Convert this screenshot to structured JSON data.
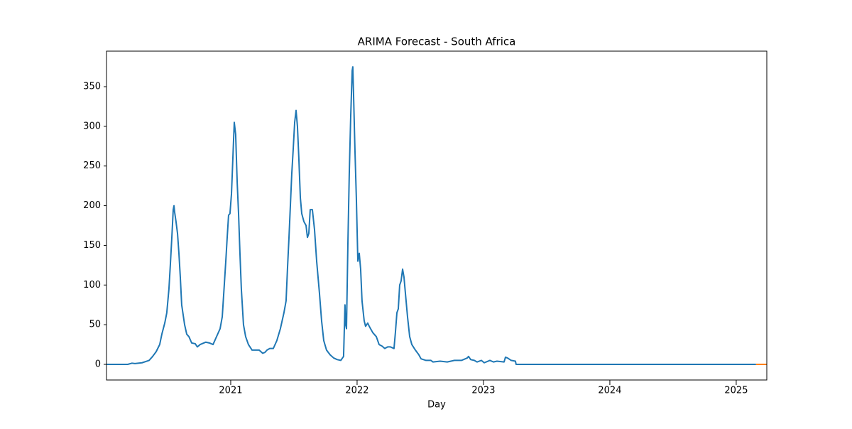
{
  "chart_data": {
    "type": "line",
    "title": "ARIMA Forecast - South Africa",
    "x_label": "Day",
    "xlim": [
      2020.017,
      2025.242
    ],
    "xticks": [
      2021,
      2022,
      2023,
      2024,
      2025
    ],
    "ylim": [
      -19.7,
      394.8
    ],
    "yticks": [
      0,
      50,
      100,
      150,
      200,
      250,
      300,
      350
    ],
    "grid": false,
    "series": [
      {
        "color": "#1f77b4",
        "x": [
          2020.017,
          2020.185,
          2020.219,
          2020.242,
          2020.298,
          2020.354,
          2020.382,
          2020.41,
          2020.438,
          2020.455,
          2020.478,
          2020.494,
          2020.511,
          2020.522,
          2020.534,
          2020.545,
          2020.551,
          2020.556,
          2020.567,
          2020.579,
          2020.59,
          2020.601,
          2020.612,
          2020.624,
          2020.635,
          2020.652,
          2020.669,
          2020.691,
          2020.719,
          2020.736,
          2020.758,
          2020.803,
          2020.831,
          2020.86,
          2020.888,
          2020.916,
          2020.933,
          2020.949,
          2020.961,
          2020.972,
          2020.983,
          2020.994,
          2021.006,
          2021.017,
          2021.028,
          2021.039,
          2021.051,
          2021.062,
          2021.073,
          2021.084,
          2021.101,
          2021.118,
          2021.14,
          2021.169,
          2021.225,
          2021.253,
          2021.27,
          2021.287,
          2021.309,
          2021.337,
          2021.365,
          2021.393,
          2021.421,
          2021.438,
          2021.449,
          2021.461,
          2021.472,
          2021.483,
          2021.494,
          2021.506,
          2021.517,
          2021.528,
          2021.539,
          2021.551,
          2021.562,
          2021.579,
          2021.596,
          2021.607,
          2021.618,
          2021.629,
          2021.646,
          2021.663,
          2021.68,
          2021.702,
          2021.719,
          2021.736,
          2021.758,
          2021.787,
          2021.815,
          2021.843,
          2021.871,
          2021.893,
          2021.899,
          2021.904,
          2021.91,
          2021.916,
          2021.927,
          2021.938,
          2021.949,
          2021.961,
          2021.966,
          2021.972,
          2021.983,
          2021.994,
          2022.006,
          2022.017,
          2022.028,
          2022.039,
          2022.056,
          2022.067,
          2022.084,
          2022.096,
          2022.124,
          2022.152,
          2022.174,
          2022.197,
          2022.219,
          2022.242,
          2022.264,
          2022.292,
          2022.303,
          2022.315,
          2022.326,
          2022.337,
          2022.348,
          2022.36,
          2022.371,
          2022.382,
          2022.399,
          2022.416,
          2022.433,
          2022.461,
          2022.489,
          2022.506,
          2022.545,
          2022.584,
          2022.601,
          2022.657,
          2022.713,
          2022.77,
          2022.826,
          2022.871,
          2022.882,
          2022.899,
          2022.927,
          2022.949,
          2022.983,
          2023.006,
          2023.051,
          2023.079,
          2023.107,
          2023.163,
          2023.174,
          2023.191,
          2023.219,
          2023.253,
          2023.258,
          2023.669,
          2024.792,
          2025.157
        ],
        "values": [
          0,
          0,
          1.5,
          1,
          2,
          5,
          10,
          16,
          25,
          38,
          52,
          65,
          95,
          125,
          160,
          195,
          200,
          192,
          180,
          165,
          140,
          110,
          75,
          62,
          50,
          38,
          35,
          27,
          26,
          22,
          25,
          28,
          27,
          25,
          35,
          45,
          60,
          100,
          130,
          160,
          188,
          190,
          215,
          260,
          305,
          290,
          230,
          190,
          140,
          95,
          50,
          35,
          25,
          18,
          18,
          14,
          15,
          18,
          20,
          20,
          30,
          45,
          65,
          80,
          120,
          160,
          200,
          240,
          270,
          305,
          320,
          300,
          260,
          210,
          190,
          180,
          175,
          160,
          165,
          195,
          195,
          170,
          130,
          90,
          55,
          30,
          18,
          12,
          8,
          6,
          5,
          10,
          45,
          75,
          50,
          45,
          150,
          240,
          310,
          370,
          375,
          340,
          270,
          210,
          130,
          140,
          120,
          80,
          55,
          48,
          52,
          48,
          40,
          35,
          25,
          23,
          20,
          22,
          22,
          20,
          40,
          65,
          70,
          100,
          105,
          120,
          110,
          90,
          60,
          35,
          25,
          18,
          12,
          7,
          5,
          5,
          3,
          4,
          3,
          5,
          5,
          8,
          10,
          6,
          5,
          3,
          5,
          2,
          5,
          3,
          4,
          3,
          9,
          8,
          5,
          4,
          0,
          0,
          0,
          0
        ]
      },
      {
        "color": "#ff7f0e",
        "x": [
          2025.157,
          2025.242
        ],
        "values": [
          0,
          0
        ]
      }
    ]
  }
}
